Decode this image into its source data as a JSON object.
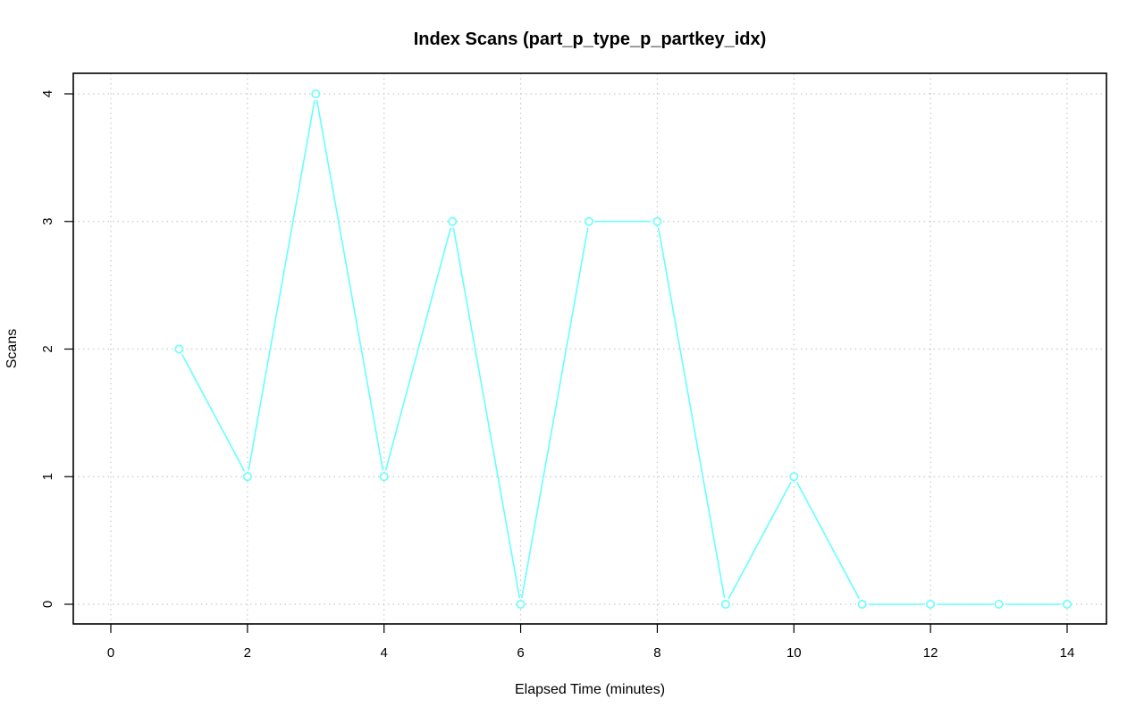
{
  "chart_data": {
    "type": "line",
    "title": "Index Scans (part_p_type_p_partkey_idx)",
    "xlabel": "Elapsed Time (minutes)",
    "ylabel": "Scans",
    "xlim": [
      0,
      14
    ],
    "ylim": [
      0,
      4
    ],
    "x_ticks": [
      0,
      2,
      4,
      6,
      8,
      10,
      12,
      14
    ],
    "y_ticks": [
      0,
      1,
      2,
      3,
      4
    ],
    "grid": true,
    "series": [
      {
        "color": "#66ffff",
        "marker": "open-circle",
        "x": [
          1,
          2,
          3,
          4,
          5,
          6,
          7,
          8,
          9,
          10,
          11,
          12,
          13,
          14
        ],
        "values": [
          2,
          1,
          4,
          1,
          3,
          0,
          3,
          3,
          0,
          1,
          0,
          0,
          0,
          0
        ]
      }
    ]
  }
}
